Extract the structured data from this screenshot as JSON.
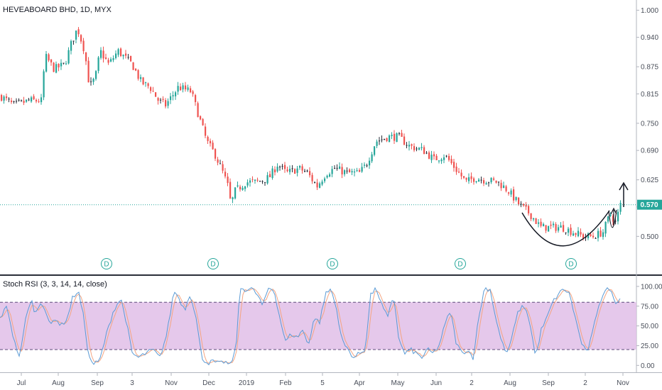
{
  "header": {
    "symbol_title": "HEVEABOARD BHD, 1D, MYX",
    "indicator_title": "Stoch RSI (3, 3, 14, 14, close)"
  },
  "last_price": {
    "value": 0.57,
    "label": "0.570"
  },
  "colors": {
    "up": "#26a69a",
    "down": "#ef5350",
    "neutral_candle": "#2a2e39",
    "price_line": "#26a69a",
    "k_line": "#5b9bd5",
    "d_line": "#f4a582",
    "band_fill": "#e1bee7",
    "band_border": "#5c4a7a",
    "drawing": "#131722"
  },
  "chart_data": [
    {
      "type": "candlestick",
      "title": "HEVEABOARD BHD, 1D, MYX",
      "x_tick_labels": [
        "Jul",
        "Aug",
        "Sep",
        "3",
        "Nov",
        "Dec",
        "2019",
        "Feb",
        "5",
        "Apr",
        "May",
        "Jun",
        "2",
        "Aug",
        "Sep",
        "2",
        "Nov"
      ],
      "y_tick_labels": [
        "1.000",
        "0.940",
        "0.875",
        "0.815",
        "0.750",
        "0.690",
        "0.625",
        "0.565",
        "0.500"
      ],
      "y_ticks": [
        1.0,
        0.94,
        0.875,
        0.815,
        0.75,
        0.69,
        0.625,
        0.565,
        0.5
      ],
      "ylim": [
        0.43,
        1.01
      ],
      "close_anchors": [
        [
          0,
          0.81
        ],
        [
          18,
          0.79
        ],
        [
          40,
          0.8
        ],
        [
          58,
          0.8
        ],
        [
          62,
          0.9
        ],
        [
          75,
          0.87
        ],
        [
          90,
          0.88
        ],
        [
          100,
          0.93
        ],
        [
          108,
          0.96
        ],
        [
          118,
          0.91
        ],
        [
          125,
          0.83
        ],
        [
          133,
          0.85
        ],
        [
          140,
          0.91
        ],
        [
          152,
          0.88
        ],
        [
          165,
          0.91
        ],
        [
          185,
          0.88
        ],
        [
          198,
          0.84
        ],
        [
          210,
          0.83
        ],
        [
          222,
          0.8
        ],
        [
          232,
          0.79
        ],
        [
          250,
          0.83
        ],
        [
          268,
          0.82
        ],
        [
          278,
          0.77
        ],
        [
          290,
          0.71
        ],
        [
          302,
          0.68
        ],
        [
          313,
          0.64
        ],
        [
          320,
          0.61
        ],
        [
          324,
          0.57
        ],
        [
          330,
          0.6
        ],
        [
          345,
          0.62
        ],
        [
          360,
          0.62
        ],
        [
          378,
          0.63
        ],
        [
          390,
          0.66
        ],
        [
          402,
          0.64
        ],
        [
          420,
          0.65
        ],
        [
          432,
          0.64
        ],
        [
          445,
          0.61
        ],
        [
          458,
          0.64
        ],
        [
          470,
          0.65
        ],
        [
          488,
          0.64
        ],
        [
          505,
          0.64
        ],
        [
          515,
          0.66
        ],
        [
          528,
          0.71
        ],
        [
          545,
          0.72
        ],
        [
          560,
          0.72
        ],
        [
          575,
          0.7
        ],
        [
          595,
          0.69
        ],
        [
          610,
          0.67
        ],
        [
          625,
          0.68
        ],
        [
          640,
          0.65
        ],
        [
          655,
          0.62
        ],
        [
          668,
          0.63
        ],
        [
          680,
          0.625
        ],
        [
          700,
          0.62
        ],
        [
          715,
          0.6
        ],
        [
          730,
          0.57
        ],
        [
          745,
          0.55
        ],
        [
          760,
          0.52
        ],
        [
          775,
          0.52
        ],
        [
          790,
          0.52
        ],
        [
          805,
          0.51
        ],
        [
          820,
          0.5
        ],
        [
          835,
          0.5
        ],
        [
          848,
          0.51
        ],
        [
          858,
          0.55
        ],
        [
          866,
          0.53
        ],
        [
          872,
          0.57
        ]
      ],
      "dividend_marks": [
        {
          "x": 150,
          "label": "D"
        },
        {
          "x": 300,
          "label": "D"
        },
        {
          "x": 468,
          "label": "D"
        },
        {
          "x": 648,
          "label": "D"
        },
        {
          "x": 804,
          "label": "D"
        }
      ],
      "annotations": [
        {
          "type": "cup-curve",
          "description": "rounded bottom pattern drawing"
        },
        {
          "type": "up-arrow",
          "description": "upward target arrow"
        }
      ]
    },
    {
      "type": "line",
      "title": "Stoch RSI (3, 3, 14, 14, close)",
      "y_tick_labels": [
        "100.00",
        "75.00",
        "50.00",
        "25.00",
        "0.00"
      ],
      "y_ticks": [
        100,
        75,
        50,
        25,
        0
      ],
      "ylim": [
        -6,
        108
      ],
      "band": {
        "upper": 80,
        "lower": 20
      },
      "k_anchors": [
        [
          0,
          60
        ],
        [
          10,
          75
        ],
        [
          20,
          30
        ],
        [
          28,
          10
        ],
        [
          38,
          70
        ],
        [
          45,
          80
        ],
        [
          50,
          65
        ],
        [
          58,
          82
        ],
        [
          64,
          70
        ],
        [
          70,
          50
        ],
        [
          78,
          60
        ],
        [
          86,
          50
        ],
        [
          95,
          60
        ],
        [
          102,
          85
        ],
        [
          110,
          95
        ],
        [
          118,
          60
        ],
        [
          125,
          10
        ],
        [
          132,
          2
        ],
        [
          140,
          5
        ],
        [
          150,
          40
        ],
        [
          160,
          70
        ],
        [
          170,
          85
        ],
        [
          178,
          55
        ],
        [
          186,
          15
        ],
        [
          195,
          10
        ],
        [
          205,
          15
        ],
        [
          215,
          20
        ],
        [
          225,
          10
        ],
        [
          235,
          40
        ],
        [
          245,
          95
        ],
        [
          252,
          85
        ],
        [
          260,
          70
        ],
        [
          268,
          92
        ],
        [
          276,
          60
        ],
        [
          284,
          10
        ],
        [
          292,
          3
        ],
        [
          300,
          5
        ],
        [
          308,
          2
        ],
        [
          316,
          5
        ],
        [
          324,
          0
        ],
        [
          332,
          20
        ],
        [
          338,
          98
        ],
        [
          346,
          96
        ],
        [
          354,
          97
        ],
        [
          362,
          90
        ],
        [
          370,
          75
        ],
        [
          378,
          98
        ],
        [
          386,
          95
        ],
        [
          394,
          60
        ],
        [
          402,
          30
        ],
        [
          410,
          40
        ],
        [
          418,
          35
        ],
        [
          426,
          45
        ],
        [
          434,
          25
        ],
        [
          442,
          60
        ],
        [
          450,
          55
        ],
        [
          458,
          90
        ],
        [
          466,
          97
        ],
        [
          474,
          70
        ],
        [
          482,
          30
        ],
        [
          490,
          20
        ],
        [
          498,
          10
        ],
        [
          506,
          15
        ],
        [
          514,
          20
        ],
        [
          522,
          90
        ],
        [
          530,
          97
        ],
        [
          538,
          75
        ],
        [
          546,
          60
        ],
        [
          554,
          90
        ],
        [
          562,
          30
        ],
        [
          570,
          15
        ],
        [
          578,
          20
        ],
        [
          586,
          15
        ],
        [
          594,
          10
        ],
        [
          602,
          20
        ],
        [
          610,
          15
        ],
        [
          618,
          25
        ],
        [
          626,
          50
        ],
        [
          634,
          70
        ],
        [
          642,
          30
        ],
        [
          650,
          15
        ],
        [
          658,
          20
        ],
        [
          666,
          10
        ],
        [
          674,
          60
        ],
        [
          682,
          98
        ],
        [
          690,
          96
        ],
        [
          698,
          60
        ],
        [
          706,
          30
        ],
        [
          714,
          15
        ],
        [
          722,
          40
        ],
        [
          730,
          70
        ],
        [
          738,
          75
        ],
        [
          746,
          55
        ],
        [
          754,
          10
        ],
        [
          762,
          45
        ],
        [
          770,
          60
        ],
        [
          778,
          80
        ],
        [
          786,
          90
        ],
        [
          794,
          97
        ],
        [
          802,
          90
        ],
        [
          810,
          60
        ],
        [
          818,
          30
        ],
        [
          826,
          15
        ],
        [
          834,
          40
        ],
        [
          842,
          75
        ],
        [
          850,
          92
        ],
        [
          858,
          98
        ],
        [
          866,
          80
        ],
        [
          872,
          85
        ]
      ]
    }
  ]
}
